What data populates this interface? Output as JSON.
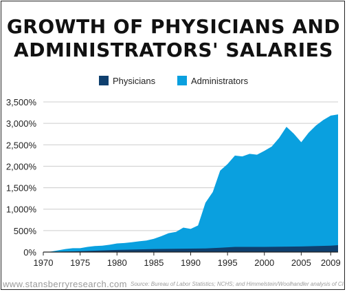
{
  "title_line1": "GROWTH OF PHYSICIANS AND",
  "title_line2": "ADMINISTRATORS' SALARIES",
  "colors": {
    "physicians": "#0f3f6e",
    "administrators": "#0aa0df",
    "grid": "#cccccc",
    "axis": "#222222"
  },
  "footer": {
    "website": "www.stansberryresearch.com",
    "source": "Source: Bureau of Labor Statistics; NCHS; and Himmelstein/Woolhandler analysis of CPS"
  },
  "chart_data": {
    "type": "area",
    "title": "GROWTH OF PHYSICIANS AND ADMINISTRATORS' SALARIES",
    "xlabel": "",
    "ylabel": "",
    "legend_position": "top",
    "grid": true,
    "xlim": [
      1970,
      2010
    ],
    "ylim": [
      0,
      3500
    ],
    "x_ticks": [
      1970,
      1975,
      1980,
      1985,
      1990,
      1995,
      2000,
      2005,
      2009
    ],
    "x_tick_labels": [
      "1970",
      "1975",
      "1980",
      "1985",
      "1990",
      "1995",
      "2000",
      "2005",
      "2009"
    ],
    "y_ticks": [
      0,
      500,
      1000,
      1500,
      2000,
      2500,
      3000,
      3500
    ],
    "y_tick_labels": [
      "0%",
      "500%",
      "1,000%",
      "1,500%",
      "2,000%",
      "2,500%",
      "3,000%",
      "3,500%"
    ],
    "series": [
      {
        "name": "Physicians",
        "x": [
          1970,
          1975,
          1980,
          1985,
          1990,
          1992,
          1994,
          1996,
          2000,
          2005,
          2009,
          2010
        ],
        "values": [
          0,
          20,
          50,
          70,
          80,
          85,
          100,
          120,
          120,
          130,
          150,
          160
        ]
      },
      {
        "name": "Administrators",
        "x": [
          1970,
          1971,
          1972,
          1973,
          1974,
          1975,
          1976,
          1977,
          1978,
          1979,
          1980,
          1981,
          1982,
          1983,
          1984,
          1985,
          1986,
          1987,
          1988,
          1989,
          1990,
          1991,
          1992,
          1993,
          1994,
          1995,
          1996,
          1997,
          1998,
          1999,
          2000,
          2001,
          2002,
          2003,
          2004,
          2005,
          2006,
          2007,
          2008,
          2009,
          2010
        ],
        "values": [
          0,
          10,
          40,
          70,
          90,
          90,
          120,
          140,
          150,
          170,
          200,
          210,
          230,
          250,
          270,
          310,
          370,
          440,
          470,
          570,
          540,
          620,
          1150,
          1400,
          1900,
          2050,
          2250,
          2230,
          2290,
          2270,
          2360,
          2460,
          2660,
          2920,
          2760,
          2560,
          2780,
          2950,
          3080,
          3180,
          3210
        ]
      }
    ]
  }
}
